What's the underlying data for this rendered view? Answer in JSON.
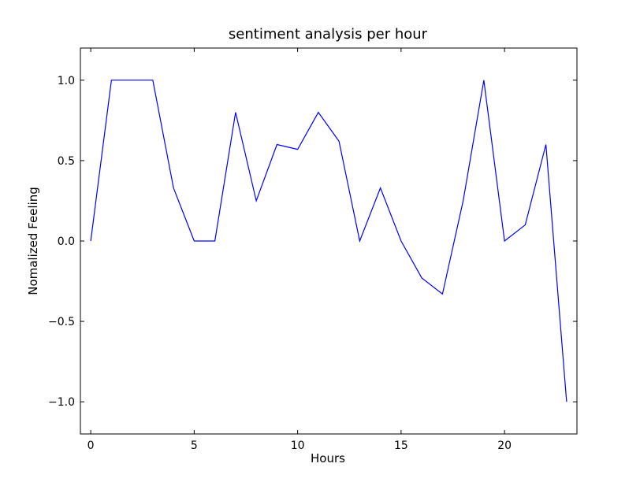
{
  "chart_data": {
    "type": "line",
    "title": "sentiment analysis per hour",
    "xlabel": "Hours",
    "ylabel": "Nomalized Feeling",
    "xlim": [
      -0.5,
      23.5
    ],
    "ylim": [
      -1.2,
      1.2
    ],
    "xticks": [
      0,
      5,
      10,
      15,
      20
    ],
    "xtick_labels": [
      "0",
      "5",
      "10",
      "15",
      "20"
    ],
    "yticks": [
      1.0,
      0.5,
      0.0,
      -0.5,
      -1.0
    ],
    "ytick_labels": [
      "1.0",
      "0.5",
      "0.0",
      "−0.5",
      "−1.0"
    ],
    "grid": false,
    "series": [
      {
        "color": "#0000ff",
        "x": [
          0,
          1,
          2,
          3,
          4,
          5,
          6,
          7,
          8,
          9,
          10,
          11,
          12,
          13,
          14,
          15,
          16,
          17,
          18,
          19,
          20,
          21,
          22,
          23
        ],
        "values": [
          0.0,
          1.0,
          1.0,
          1.0,
          0.33,
          0.0,
          0.0,
          0.8,
          0.25,
          0.6,
          0.57,
          0.8,
          0.62,
          0.0,
          0.33,
          0.0,
          -0.23,
          -0.33,
          0.25,
          1.0,
          0.0,
          0.1,
          0.6,
          -1.0
        ]
      }
    ]
  }
}
